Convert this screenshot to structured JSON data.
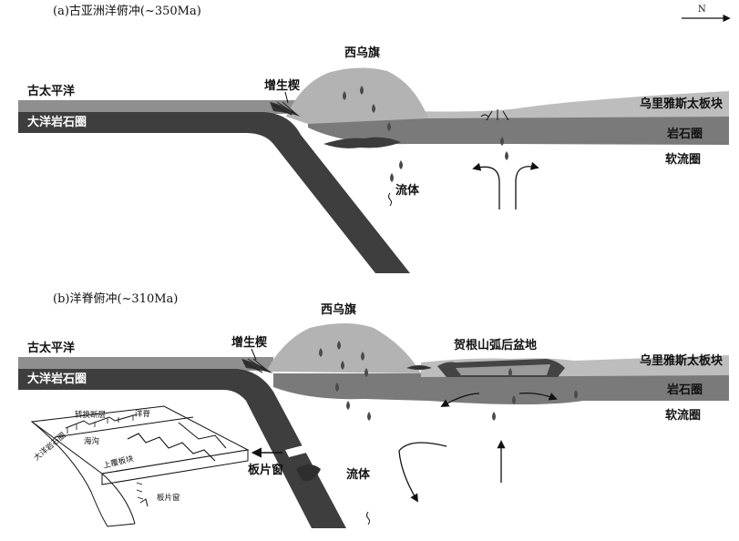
{
  "north": "N",
  "panel_a": {
    "title": "(a)古亚洲洋俯冲(~350Ma)",
    "labels": {
      "pacific": "古太平洋",
      "oceanic_litho": "大洋岩石圈",
      "wedge": "增生楔",
      "xiwuqi": "西乌旗",
      "uliastai": "乌里雅斯太板块",
      "lithosphere": "岩石圈",
      "asthenosphere": "软流圈",
      "fluid": "流体"
    }
  },
  "panel_b": {
    "title": "(b)洋脊俯冲(~310Ma)",
    "labels": {
      "pacific": "古太平洋",
      "oceanic_litho": "大洋岩石圈",
      "wedge": "增生楔",
      "xiwuqi": "西乌旗",
      "hegenshan": "贺根山弧后盆地",
      "uliastai": "乌里雅斯太板块",
      "lithosphere": "岩石圈",
      "asthenosphere": "软流圈",
      "fluid": "流体",
      "slab_window": "板片窗"
    },
    "inset": {
      "transform_fault": "转换断层",
      "ridge": "洋脊",
      "oceanic_litho": "大洋岩石圈",
      "trench": "海沟",
      "upper_plate": "上覆板块",
      "slab_window": "板片窗"
    }
  }
}
